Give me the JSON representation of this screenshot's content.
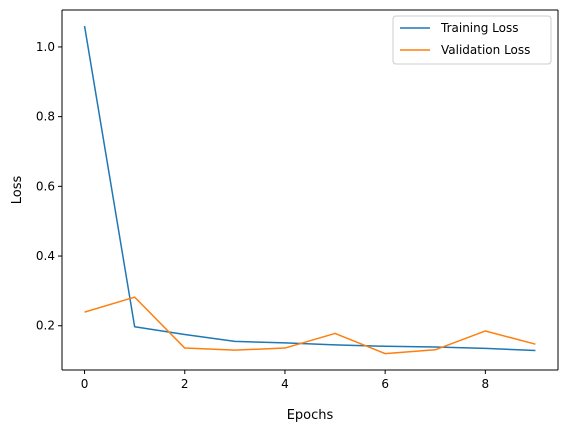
{
  "chart_data": {
    "type": "line",
    "title": "",
    "xlabel": "Epochs",
    "ylabel": "Loss",
    "x": [
      0,
      1,
      2,
      3,
      4,
      5,
      6,
      7,
      8,
      9
    ],
    "xlim": [
      -0.45,
      9.45
    ],
    "ylim": [
      0.073,
      1.106
    ],
    "xticks": [
      0,
      2,
      4,
      6,
      8
    ],
    "yticks": [
      0.2,
      0.4,
      0.6,
      0.8,
      1.0
    ],
    "xtick_labels": [
      "0",
      "2",
      "4",
      "6",
      "8"
    ],
    "ytick_labels": [
      "0.2",
      "0.4",
      "0.6",
      "0.8",
      "1.0"
    ],
    "grid": false,
    "legend_position": "top-right",
    "series": [
      {
        "name": "Training Loss",
        "color": "#1f77b4",
        "values": [
          1.06,
          0.197,
          0.175,
          0.155,
          0.151,
          0.145,
          0.141,
          0.139,
          0.135,
          0.129
        ]
      },
      {
        "name": "Validation Loss",
        "color": "#ff7f0e",
        "values": [
          0.239,
          0.282,
          0.136,
          0.13,
          0.136,
          0.178,
          0.12,
          0.131,
          0.185,
          0.147
        ]
      }
    ]
  }
}
